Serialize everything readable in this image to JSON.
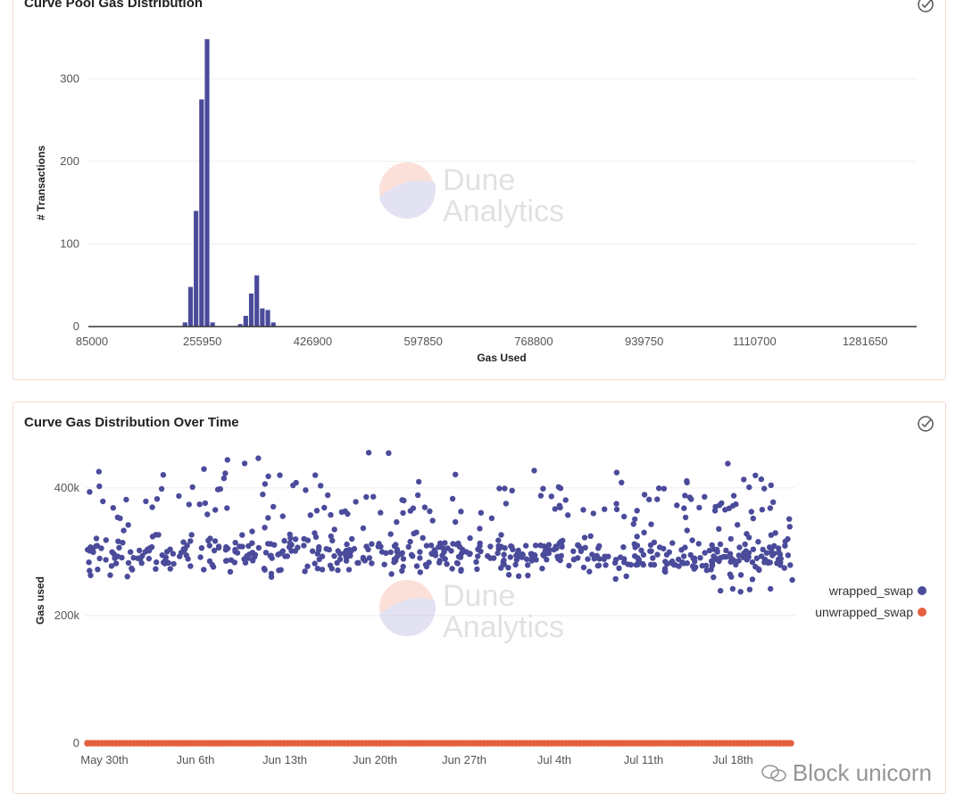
{
  "panels": [
    {
      "title": "Curve Pool Gas Distribution"
    },
    {
      "title": "Curve Gas Distribution Over Time"
    }
  ],
  "watermark": {
    "line1": "Dune",
    "line2": "Analytics"
  },
  "footer_watermark": "Block unicorn",
  "colors": {
    "bar": "#4b4b9b",
    "wrapped": "#4b4b9b",
    "unwrapped": "#e4603e",
    "grid": "#ededed",
    "axis": "#333333"
  },
  "chart_data": [
    {
      "type": "bar",
      "title": "Curve Pool Gas Distribution",
      "xlabel": "Gas Used",
      "ylabel": "# Transactions",
      "xlim": [
        85000,
        1367125
      ],
      "ylim": [
        0,
        350
      ],
      "xticks": [
        "85000",
        "255950",
        "426900",
        "597850",
        "768800",
        "939750",
        "1110700",
        "1281650"
      ],
      "yticks": [
        "0",
        "100",
        "200",
        "300"
      ],
      "bin_width": 8547.5,
      "bins_start": [
        230307.5,
        238855,
        247402.5,
        255950,
        264497.5,
        273045,
        281592.5,
        315782.5,
        324330,
        332877.5,
        341425,
        349972.5,
        358520,
        367067.5
      ],
      "values": [
        5,
        48,
        140,
        275,
        348,
        5,
        0,
        3,
        13,
        40,
        62,
        22,
        20,
        5
      ]
    },
    {
      "type": "scatter",
      "title": "Curve Gas Distribution Over Time",
      "xlabel": "",
      "ylabel": "Gas used",
      "xticks": [
        "May 30th",
        "Jun 6th",
        "Jun 13th",
        "Jun 20th",
        "Jun 27th",
        "Jul 4th",
        "Jul 11th",
        "Jul 18th"
      ],
      "yticks": [
        "0",
        "200k",
        "400k"
      ],
      "ylim": [
        0,
        450000
      ],
      "legend_position": "right",
      "x_range": [
        "May 30th",
        "Jul 24th"
      ],
      "series": [
        {
          "name": "wrapped_swap",
          "bands": [
            {
              "center": 295000,
              "spread": 15000,
              "count": 520
            },
            {
              "center": 380000,
              "spread": 30000,
              "count": 150
            },
            {
              "center": 260000,
              "spread": 20000,
              "count": 12
            }
          ]
        },
        {
          "name": "unwrapped_swap",
          "value": 0
        }
      ]
    }
  ]
}
